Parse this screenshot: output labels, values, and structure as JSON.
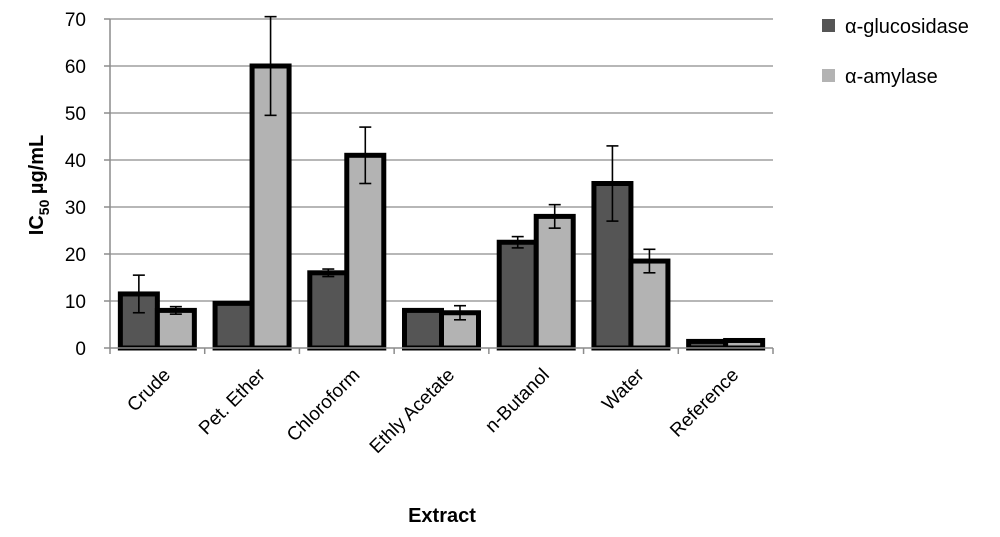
{
  "chart_data": {
    "type": "bar",
    "title": "",
    "xlabel": "Extract",
    "ylabel": {
      "main": "IC",
      "sub": "50",
      "unit": " µg/mL"
    },
    "ylim": [
      0,
      70
    ],
    "yticks": [
      0,
      10,
      20,
      30,
      40,
      50,
      60,
      70
    ],
    "grid": true,
    "legend_position": "top-right",
    "categories": [
      "Crude",
      "Pet. Ether",
      "Chloroform",
      "Ethly Acetate",
      "n-Butanol",
      "Water",
      "Reference"
    ],
    "series": [
      {
        "name": "α-glucosidase",
        "color": "#555555",
        "values": [
          11.5,
          9.5,
          16,
          8,
          22.5,
          35,
          1.4
        ],
        "errors": [
          4,
          0,
          0.8,
          0,
          1.2,
          8,
          0
        ]
      },
      {
        "name": "α-amylase",
        "color": "#b3b3b3",
        "values": [
          8,
          60,
          41,
          7.5,
          28,
          18.5,
          1.6
        ],
        "errors": [
          0.8,
          10.5,
          6,
          1.5,
          2.5,
          2.5,
          0
        ]
      }
    ]
  }
}
